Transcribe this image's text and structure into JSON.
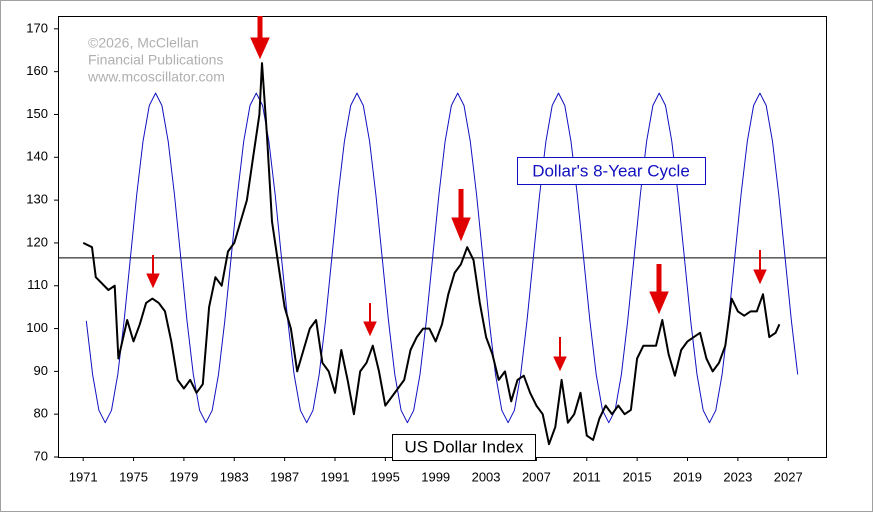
{
  "chart_data": {
    "type": "line",
    "annotations": [
      "©2026, McClellan",
      "Financial Publications",
      "www.mcoscillator.com"
    ],
    "xlim": [
      1969,
      2030
    ],
    "ylim": [
      70,
      173
    ],
    "xticks": [
      1971,
      1975,
      1979,
      1983,
      1987,
      1991,
      1995,
      1999,
      2003,
      2007,
      2011,
      2015,
      2019,
      2023,
      2027
    ],
    "yticks": [
      70,
      80,
      90,
      100,
      110,
      120,
      130,
      140,
      150,
      160,
      170
    ],
    "hline": 116.5,
    "hline_color": "#000000",
    "grid": false,
    "series": [
      {
        "name": "Dollar's 8-Year Cycle",
        "color": "#1010c0",
        "x": [
          1971.25,
          1971.75,
          1972.25,
          1972.75,
          1973.25,
          1973.75,
          1974.25,
          1974.75,
          1975.25,
          1975.75,
          1976.25,
          1976.75,
          1977.25,
          1977.75,
          1978.25,
          1978.75,
          1979.25,
          1979.75,
          1980.25,
          1980.75,
          1981.25,
          1981.75,
          1982.25,
          1982.75,
          1983.25,
          1983.75,
          1984.25,
          1984.75,
          1985.25,
          1985.75,
          1986.25,
          1986.75,
          1987.25,
          1987.75,
          1988.25,
          1988.75,
          1989.25,
          1989.75,
          1990.25,
          1990.75,
          1991.25,
          1991.75,
          1992.25,
          1992.75,
          1993.25,
          1993.75,
          1994.25,
          1994.75,
          1995.25,
          1995.75,
          1996.25,
          1996.75,
          1997.25,
          1997.75,
          1998.25,
          1998.75,
          1999.25,
          1999.75,
          2000.25,
          2000.75,
          2001.25,
          2001.75,
          2002.25,
          2002.75,
          2003.25,
          2003.75,
          2004.25,
          2004.75,
          2005.25,
          2005.75,
          2006.25,
          2006.75,
          2007.25,
          2007.75,
          2008.25,
          2008.75,
          2009.25,
          2009.75,
          2010.25,
          2010.75,
          2011.25,
          2011.75,
          2012.25,
          2012.75,
          2013.25,
          2013.75,
          2014.25,
          2014.75,
          2015.25,
          2015.75,
          2016.25,
          2016.75,
          2017.25,
          2017.75,
          2018.25,
          2018.75,
          2019.25,
          2019.75,
          2020.25,
          2020.75,
          2021.25,
          2021.75,
          2022.25,
          2022.75,
          2023.25,
          2023.75,
          2024.25,
          2024.75,
          2025.25,
          2025.75,
          2026.25,
          2026.75,
          2027.25,
          2027.75
        ],
        "values": [
          101.8,
          89.3,
          80.9,
          78,
          80.9,
          89.3,
          101.8,
          116.5,
          131.2,
          143.7,
          152.1,
          155,
          152.1,
          143.7,
          131.2,
          116.5,
          101.8,
          89.3,
          80.9,
          78,
          80.9,
          89.3,
          101.8,
          116.5,
          131.2,
          143.7,
          152.1,
          155,
          152.1,
          143.7,
          131.2,
          116.5,
          101.8,
          89.3,
          80.9,
          78,
          80.9,
          89.3,
          101.8,
          116.5,
          131.2,
          143.7,
          152.1,
          155,
          152.1,
          143.7,
          131.2,
          116.5,
          101.8,
          89.3,
          80.9,
          78,
          80.9,
          89.3,
          101.8,
          116.5,
          131.2,
          143.7,
          152.1,
          155,
          152.1,
          143.7,
          131.2,
          116.5,
          101.8,
          89.3,
          80.9,
          78,
          80.9,
          89.3,
          101.8,
          116.5,
          131.2,
          143.7,
          152.1,
          155,
          152.1,
          143.7,
          131.2,
          116.5,
          101.8,
          89.3,
          80.9,
          78,
          80.9,
          89.3,
          101.8,
          116.5,
          131.2,
          143.7,
          152.1,
          155,
          152.1,
          143.7,
          131.2,
          116.5,
          101.8,
          89.3,
          80.9,
          78,
          80.9,
          89.3,
          101.8,
          116.5,
          131.2,
          143.7,
          152.1,
          155,
          152.1,
          143.7,
          131.2,
          116.5,
          101.8,
          89.3
        ]
      },
      {
        "name": "US Dollar Index",
        "color": "#000000",
        "x": [
          1971,
          1971.7,
          1972,
          1973,
          1973.5,
          1973.8,
          1974.5,
          1975,
          1975.5,
          1976,
          1976.5,
          1977,
          1977.5,
          1978,
          1978.5,
          1979,
          1979.5,
          1980,
          1980.5,
          1981,
          1981.5,
          1982,
          1982.5,
          1983,
          1983.5,
          1984,
          1984.5,
          1985,
          1985.2,
          1985.6,
          1986,
          1986.5,
          1987,
          1987.5,
          1988,
          1988.5,
          1989,
          1989.5,
          1990,
          1990.5,
          1991,
          1991.5,
          1992,
          1992.5,
          1993,
          1993.5,
          1994,
          1994.5,
          1995,
          1995.5,
          1996,
          1996.5,
          1997,
          1997.5,
          1998,
          1998.5,
          1999,
          1999.5,
          2000,
          2000.5,
          2001,
          2001.5,
          2002,
          2002.5,
          2003,
          2003.5,
          2004,
          2004.5,
          2005,
          2005.5,
          2006,
          2006.5,
          2007,
          2007.5,
          2008,
          2008.5,
          2009,
          2009.5,
          2010,
          2010.5,
          2011,
          2011.5,
          2012,
          2012.5,
          2013,
          2013.5,
          2014,
          2014.5,
          2015,
          2015.5,
          2016,
          2016.5,
          2017,
          2017.5,
          2018,
          2018.5,
          2019,
          2019.5,
          2020,
          2020.5,
          2021,
          2021.5,
          2022,
          2022.5,
          2023,
          2023.5,
          2024,
          2024.5,
          2025,
          2025.5,
          2026,
          2026.3
        ],
        "values": [
          120,
          119,
          112,
          109,
          110,
          93,
          102,
          97,
          101,
          106,
          107,
          106,
          104,
          97,
          88,
          86,
          88,
          85,
          87,
          105,
          112,
          110,
          118,
          120,
          125,
          130,
          140,
          150,
          162,
          145,
          125,
          115,
          105,
          100,
          90,
          95,
          100,
          102,
          92,
          90,
          85,
          95,
          88,
          80,
          90,
          92,
          96,
          90,
          82,
          84,
          86,
          88,
          95,
          98,
          100,
          100,
          97,
          101,
          108,
          113,
          115,
          119,
          116,
          106,
          98,
          94,
          88,
          90,
          83,
          88,
          89,
          85,
          82,
          80,
          73,
          77,
          88,
          78,
          80,
          85,
          75,
          74,
          79,
          82,
          80,
          82,
          80,
          81,
          93,
          96,
          96,
          96,
          102,
          94,
          89,
          95,
          97,
          98,
          99,
          93,
          90,
          92,
          96,
          107,
          104,
          103,
          104,
          104,
          108,
          98,
          99,
          101
        ]
      }
    ]
  }
}
